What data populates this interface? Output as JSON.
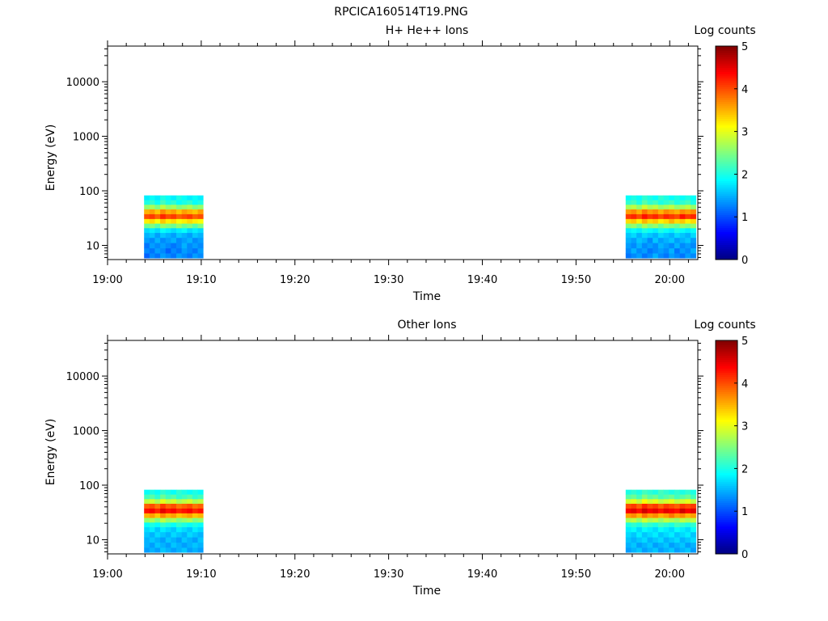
{
  "page_title": "RPCICA160514T19.PNG",
  "chart_data": [
    {
      "type": "heatmap",
      "title": "H+ He++ Ions",
      "xlabel": "Time",
      "ylabel": "Energy (eV)",
      "x_ticks": [
        "19:00",
        "19:10",
        "19:20",
        "19:30",
        "19:40",
        "19:50",
        "20:00"
      ],
      "x_range": [
        "19:00",
        "20:03"
      ],
      "y_scale": "log",
      "y_ticks": [
        "10",
        "100",
        "1000",
        "10000"
      ],
      "y_range": [
        5.5,
        45000
      ],
      "colorbar": {
        "label": "Log counts",
        "ticks": [
          "0",
          "1",
          "2",
          "3",
          "4",
          "5"
        ],
        "range": [
          0,
          5
        ],
        "colormap": "jet"
      },
      "bursts": [
        {
          "time_start": "19:03:54",
          "time_end": "19:10:12",
          "energies_eV": [
            6.5,
            8,
            10,
            12.5,
            15.5,
            19,
            23,
            28,
            34,
            42,
            51,
            62,
            75
          ],
          "log_counts": [
            [
              1.1,
              1.3,
              1.2,
              1.4,
              1.3,
              1.2,
              1.4,
              1.3,
              1.2,
              1.4,
              1.3
            ],
            [
              1.3,
              1.2,
              1.4,
              1.3,
              1.1,
              1.3,
              1.2,
              1.4,
              1.3,
              1.2,
              1.4
            ],
            [
              1.2,
              1.4,
              1.3,
              1.4,
              1.3,
              1.2,
              1.3,
              1.5,
              1.3,
              1.4,
              1.3
            ],
            [
              1.4,
              1.3,
              1.5,
              1.3,
              1.4,
              1.5,
              1.3,
              1.4,
              1.5,
              1.3,
              1.4
            ],
            [
              1.5,
              1.6,
              1.4,
              1.6,
              1.5,
              1.4,
              1.6,
              1.5,
              1.4,
              1.6,
              1.5
            ],
            [
              1.7,
              1.8,
              1.7,
              1.9,
              1.8,
              1.7,
              1.8,
              1.9,
              1.7,
              1.8,
              1.7
            ],
            [
              2.4,
              2.5,
              2.3,
              2.6,
              2.5,
              2.4,
              2.6,
              2.4,
              2.5,
              2.3,
              2.5
            ],
            [
              3.2,
              3.3,
              3.1,
              3.4,
              3.2,
              3.3,
              3.1,
              3.2,
              3.3,
              3.2,
              3.1
            ],
            [
              4.0,
              4.1,
              3.9,
              4.2,
              4.0,
              4.1,
              3.9,
              4.0,
              4.1,
              3.9,
              4.0
            ],
            [
              3.5,
              3.6,
              3.4,
              3.7,
              3.5,
              3.6,
              3.4,
              3.6,
              3.5,
              3.4,
              3.6
            ],
            [
              2.6,
              2.7,
              2.5,
              2.8,
              2.6,
              2.7,
              2.5,
              2.6,
              2.7,
              2.5,
              2.6
            ],
            [
              2.0,
              2.1,
              1.9,
              2.2,
              2.0,
              2.1,
              1.9,
              2.0,
              2.1,
              1.9,
              2.0
            ],
            [
              1.8,
              1.9,
              1.8,
              2.0,
              1.9,
              1.8,
              2.0,
              1.9,
              1.8,
              1.9,
              1.8
            ]
          ]
        },
        {
          "time_start": "19:55:18",
          "time_end": "20:02:48",
          "energies_eV": [
            6.5,
            8,
            10,
            12.5,
            15.5,
            19,
            23,
            28,
            34,
            42,
            51,
            62,
            75
          ],
          "log_counts": [
            [
              1.2,
              1.3,
              1.4,
              1.2,
              1.3,
              1.5,
              1.3,
              1.2,
              1.4,
              1.3,
              1.2,
              1.4,
              1.3
            ],
            [
              1.3,
              1.5,
              1.3,
              1.4,
              1.2,
              1.3,
              1.4,
              1.3,
              1.5,
              1.2,
              1.4,
              1.3,
              1.5
            ],
            [
              1.4,
              1.3,
              1.5,
              1.3,
              1.4,
              1.3,
              1.5,
              1.4,
              1.3,
              1.5,
              1.3,
              1.4,
              1.3
            ],
            [
              1.5,
              1.4,
              1.6,
              1.5,
              1.3,
              1.6,
              1.4,
              1.5,
              1.6,
              1.4,
              1.5,
              1.6,
              1.4
            ],
            [
              1.6,
              1.7,
              1.5,
              1.7,
              1.6,
              1.5,
              1.7,
              1.6,
              1.5,
              1.7,
              1.6,
              1.5,
              1.7
            ],
            [
              1.8,
              1.9,
              1.8,
              2.0,
              1.9,
              1.8,
              2.0,
              1.9,
              1.8,
              2.0,
              1.9,
              1.8,
              1.9
            ],
            [
              2.5,
              2.6,
              2.4,
              2.7,
              2.5,
              2.6,
              2.4,
              2.6,
              2.5,
              2.4,
              2.6,
              2.5,
              2.6
            ],
            [
              3.3,
              3.4,
              3.2,
              3.5,
              3.3,
              3.4,
              3.2,
              3.3,
              3.5,
              3.3,
              3.4,
              3.2,
              3.3
            ],
            [
              4.1,
              4.2,
              4.0,
              4.3,
              4.1,
              4.2,
              4.0,
              4.2,
              4.1,
              4.0,
              4.3,
              4.1,
              4.2
            ],
            [
              3.6,
              3.7,
              3.5,
              3.8,
              3.6,
              3.7,
              3.5,
              3.7,
              3.6,
              3.5,
              3.7,
              3.6,
              3.7
            ],
            [
              2.7,
              2.8,
              2.6,
              2.9,
              2.7,
              2.8,
              2.6,
              2.7,
              2.8,
              2.6,
              2.7,
              2.8,
              2.6
            ],
            [
              2.1,
              2.2,
              2.0,
              2.3,
              2.1,
              2.2,
              2.0,
              2.1,
              2.2,
              2.0,
              2.1,
              2.2,
              2.0
            ],
            [
              1.9,
              2.0,
              1.9,
              2.1,
              2.0,
              1.9,
              2.1,
              2.0,
              1.9,
              2.0,
              1.9,
              2.0,
              1.9
            ]
          ]
        }
      ]
    },
    {
      "type": "heatmap",
      "title": "Other Ions",
      "xlabel": "Time",
      "ylabel": "Energy (eV)",
      "x_ticks": [
        "19:00",
        "19:10",
        "19:20",
        "19:30",
        "19:40",
        "19:50",
        "20:00"
      ],
      "x_range": [
        "19:00",
        "20:03"
      ],
      "y_scale": "log",
      "y_ticks": [
        "10",
        "100",
        "1000",
        "10000"
      ],
      "y_range": [
        5.5,
        45000
      ],
      "colorbar": {
        "label": "Log counts",
        "ticks": [
          "0",
          "1",
          "2",
          "3",
          "4",
          "5"
        ],
        "range": [
          0,
          5
        ],
        "colormap": "jet"
      },
      "bursts": [
        {
          "time_start": "19:03:54",
          "time_end": "19:10:12",
          "energies_eV": [
            6.5,
            8,
            10,
            12.5,
            15.5,
            19,
            23,
            28,
            34,
            42,
            51,
            62,
            75
          ],
          "log_counts": [
            [
              1.4,
              1.5,
              1.4,
              1.6,
              1.5,
              1.4,
              1.5,
              1.6,
              1.4,
              1.5,
              1.4
            ],
            [
              1.5,
              1.4,
              1.6,
              1.5,
              1.4,
              1.6,
              1.5,
              1.4,
              1.5,
              1.6,
              1.5
            ],
            [
              1.5,
              1.6,
              1.5,
              1.4,
              1.6,
              1.5,
              1.4,
              1.6,
              1.5,
              1.4,
              1.6
            ],
            [
              1.6,
              1.5,
              1.7,
              1.6,
              1.5,
              1.7,
              1.6,
              1.5,
              1.7,
              1.6,
              1.5
            ],
            [
              1.7,
              1.8,
              1.6,
              1.8,
              1.7,
              1.6,
              1.8,
              1.7,
              1.6,
              1.8,
              1.7
            ],
            [
              1.9,
              2.0,
              1.9,
              2.1,
              2.0,
              1.9,
              2.1,
              2.0,
              1.9,
              2.0,
              1.9
            ],
            [
              2.6,
              2.7,
              2.5,
              2.8,
              2.6,
              2.7,
              2.5,
              2.6,
              2.7,
              2.5,
              2.6
            ],
            [
              3.5,
              3.6,
              3.4,
              3.7,
              3.5,
              3.6,
              3.4,
              3.5,
              3.6,
              3.4,
              3.5
            ],
            [
              4.3,
              4.4,
              4.2,
              4.5,
              4.3,
              4.4,
              4.2,
              4.3,
              4.4,
              4.2,
              4.3
            ],
            [
              3.9,
              4.0,
              3.8,
              4.1,
              3.9,
              4.0,
              3.8,
              3.9,
              4.0,
              3.8,
              3.9
            ],
            [
              2.8,
              2.9,
              2.7,
              3.0,
              2.8,
              2.9,
              2.7,
              2.8,
              2.9,
              2.7,
              2.8
            ],
            [
              2.2,
              2.3,
              2.1,
              2.4,
              2.2,
              2.3,
              2.1,
              2.2,
              2.3,
              2.1,
              2.2
            ],
            [
              1.9,
              2.0,
              1.9,
              2.1,
              2.0,
              1.9,
              2.1,
              2.0,
              1.9,
              2.0,
              1.9
            ]
          ]
        },
        {
          "time_start": "19:55:18",
          "time_end": "20:02:48",
          "energies_eV": [
            6.5,
            8,
            10,
            12.5,
            15.5,
            19,
            23,
            28,
            34,
            42,
            51,
            62,
            75
          ],
          "log_counts": [
            [
              1.4,
              1.5,
              1.6,
              1.4,
              1.5,
              1.6,
              1.4,
              1.5,
              1.6,
              1.4,
              1.5,
              1.6,
              1.4
            ],
            [
              1.5,
              1.6,
              1.4,
              1.5,
              1.6,
              1.4,
              1.5,
              1.6,
              1.4,
              1.5,
              1.6,
              1.4,
              1.5
            ],
            [
              1.6,
              1.5,
              1.6,
              1.7,
              1.5,
              1.6,
              1.7,
              1.5,
              1.6,
              1.7,
              1.5,
              1.6,
              1.7
            ],
            [
              1.7,
              1.6,
              1.8,
              1.6,
              1.7,
              1.8,
              1.6,
              1.7,
              1.8,
              1.6,
              1.7,
              1.8,
              1.6
            ],
            [
              1.8,
              1.9,
              1.7,
              1.9,
              1.8,
              1.7,
              1.9,
              1.8,
              1.7,
              1.9,
              1.8,
              1.7,
              1.9
            ],
            [
              2.0,
              2.1,
              2.0,
              2.2,
              2.1,
              2.0,
              2.2,
              2.1,
              2.0,
              2.2,
              2.1,
              2.0,
              2.1
            ],
            [
              2.7,
              2.8,
              2.6,
              2.9,
              2.7,
              2.8,
              2.6,
              2.8,
              2.7,
              2.6,
              2.8,
              2.7,
              2.8
            ],
            [
              3.6,
              3.7,
              3.5,
              3.8,
              3.6,
              3.7,
              3.5,
              3.6,
              3.8,
              3.6,
              3.7,
              3.5,
              3.6
            ],
            [
              4.4,
              4.5,
              4.3,
              4.6,
              4.4,
              4.5,
              4.3,
              4.5,
              4.4,
              4.3,
              4.6,
              4.4,
              4.5
            ],
            [
              4.0,
              4.1,
              3.9,
              4.2,
              4.0,
              4.1,
              3.9,
              4.1,
              4.0,
              3.9,
              4.1,
              4.0,
              4.1
            ],
            [
              2.9,
              3.0,
              2.8,
              3.1,
              2.9,
              3.0,
              2.8,
              2.9,
              3.0,
              2.8,
              2.9,
              3.0,
              2.8
            ],
            [
              2.3,
              2.4,
              2.2,
              2.5,
              2.3,
              2.4,
              2.2,
              2.3,
              2.4,
              2.2,
              2.3,
              2.4,
              2.2
            ],
            [
              2.0,
              2.1,
              2.0,
              2.2,
              2.1,
              2.0,
              2.2,
              2.1,
              2.0,
              2.1,
              2.0,
              2.1,
              2.0
            ]
          ]
        }
      ]
    }
  ]
}
